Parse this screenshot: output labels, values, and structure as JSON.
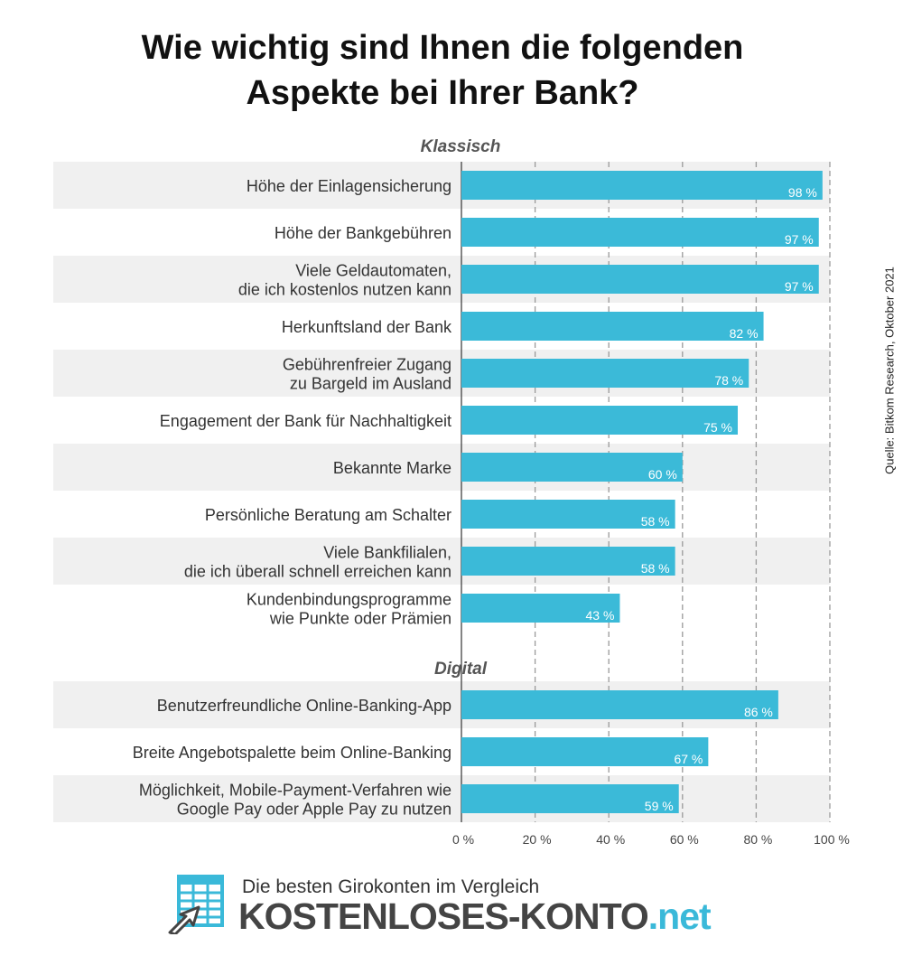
{
  "title_lines": [
    "Wie wichtig sind Ihnen die folgenden",
    "Aspekte bei Ihrer Bank?"
  ],
  "source": "Quelle: Bitkom Research, Oktober 2021",
  "footer": {
    "tagline": "Die besten Girokonten im Vergleich",
    "brand_main": "KOSTENLOSES-KONTO",
    "brand_tld": ".net",
    "logo_icon": "spreadsheet-with-arrow-icon"
  },
  "colors": {
    "bar": "#3bbad8",
    "stripe": "#f0f0f0",
    "grid": "#9a9a9a",
    "label": "#333333",
    "accent": "#3ab9d9"
  },
  "chart_data": {
    "type": "bar",
    "orientation": "horizontal",
    "xlim": [
      0,
      100
    ],
    "x_ticks": [
      "0 %",
      "20 %",
      "40 %",
      "60 %",
      "80 %",
      "100 %"
    ],
    "grid": true,
    "value_suffix": " %",
    "groups": [
      {
        "name": "Klassisch",
        "categories": [
          [
            "Höhe der Einlagensicherung"
          ],
          [
            "Höhe der Bankgebühren"
          ],
          [
            "Viele Geldautomaten,",
            "die ich kostenlos nutzen kann"
          ],
          [
            "Herkunftsland der Bank"
          ],
          [
            "Gebührenfreier Zugang",
            "zu Bargeld im Ausland"
          ],
          [
            "Engagement der Bank für Nachhaltigkeit"
          ],
          [
            "Bekannte Marke"
          ],
          [
            "Persönliche Beratung am Schalter"
          ],
          [
            "Viele Bankfilialen,",
            "die ich überall schnell erreichen kann"
          ],
          [
            "Kundenbindungsprogramme",
            "wie Punkte oder Prämien"
          ]
        ],
        "values": [
          98,
          97,
          97,
          82,
          78,
          75,
          60,
          58,
          58,
          43
        ]
      },
      {
        "name": "Digital",
        "categories": [
          [
            "Benutzerfreundliche Online-Banking-App"
          ],
          [
            "Breite Angebotspalette beim Online-Banking"
          ],
          [
            "Möglichkeit, Mobile-Payment-Verfahren wie",
            "Google Pay oder Apple Pay zu nutzen"
          ]
        ],
        "values": [
          86,
          67,
          59
        ]
      }
    ]
  }
}
